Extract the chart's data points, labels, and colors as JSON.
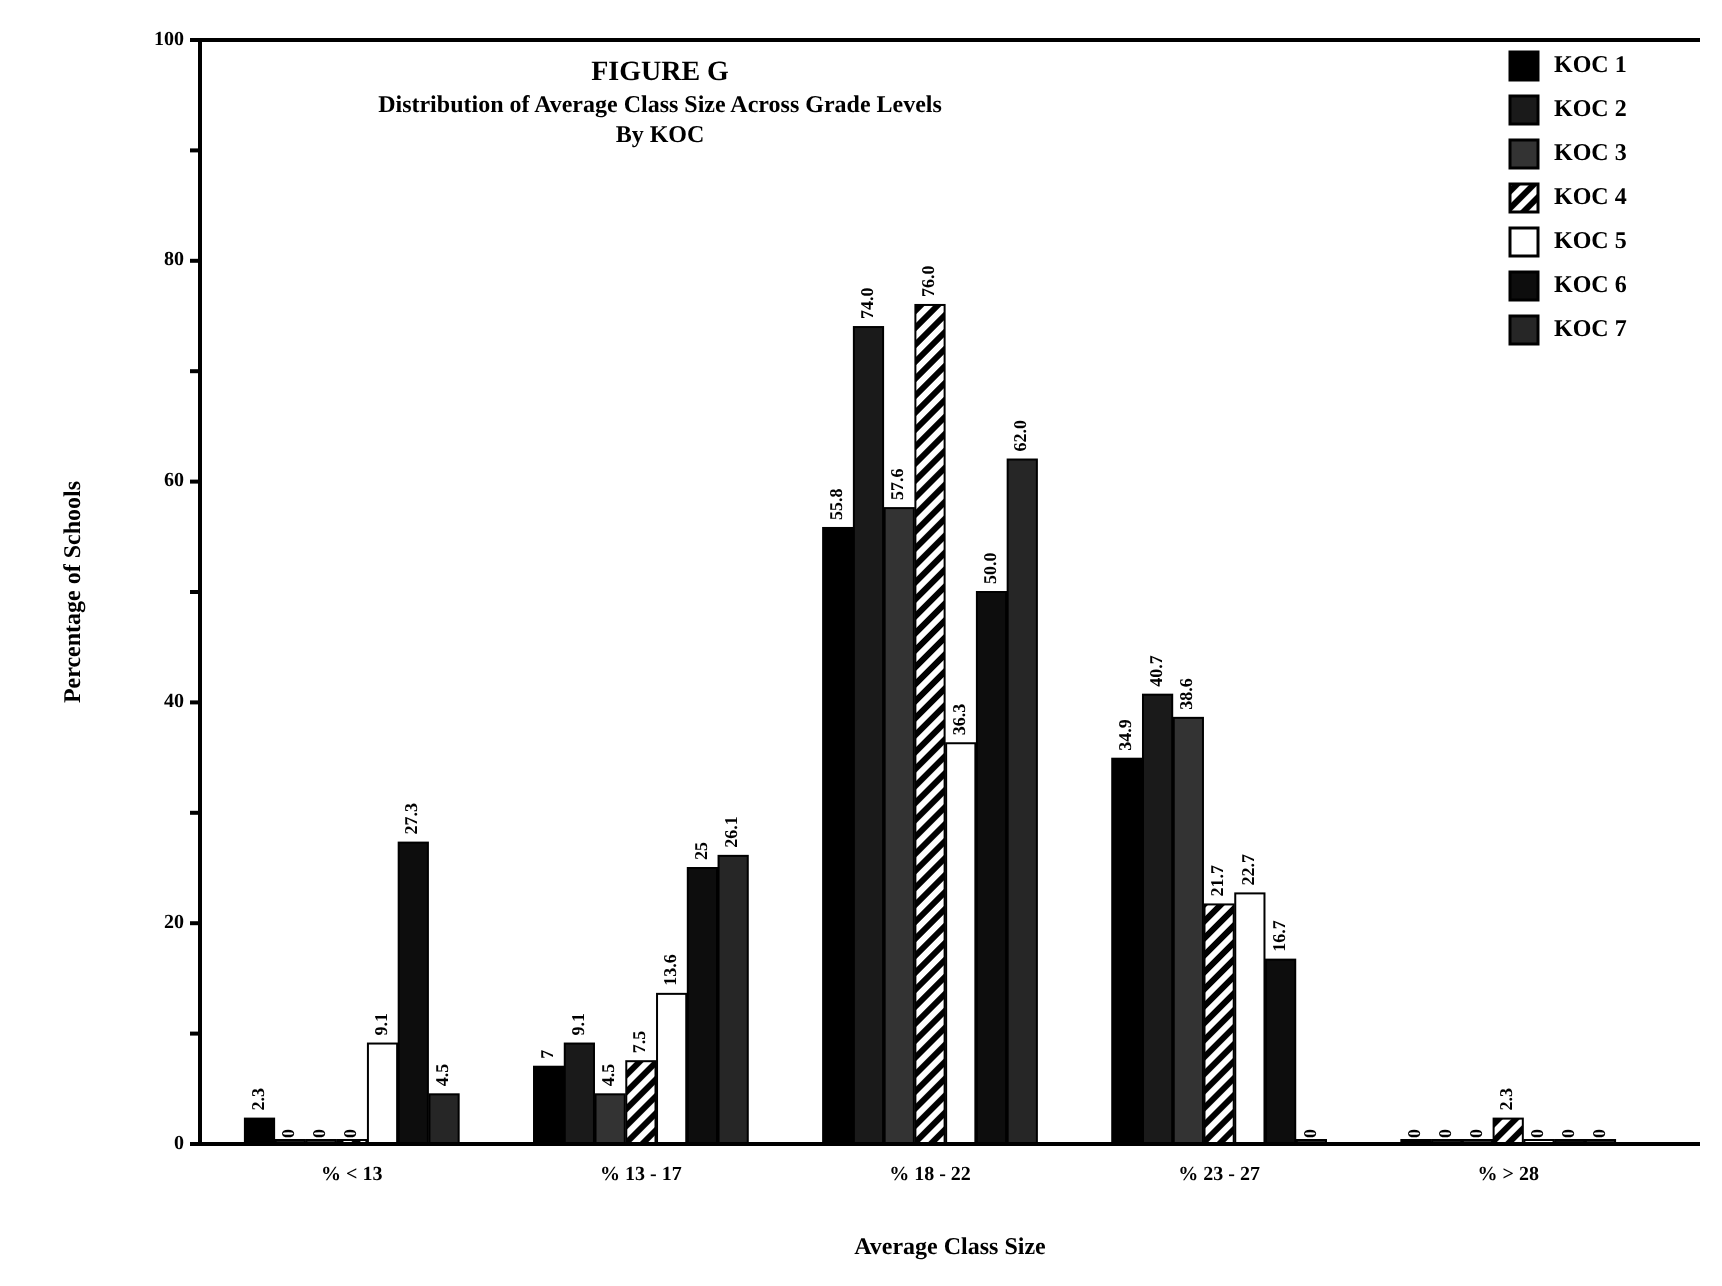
{
  "chart_data": {
    "type": "bar",
    "title": "FIGURE G",
    "subtitle": "Distribution of Average Class Size Across Grade Levels\nBy KOC",
    "xlabel": "Average Class Size",
    "ylabel": "Percentage of Schools",
    "categories": [
      "% < 13",
      "% 13 - 17",
      "% 18 - 22",
      "% 23 - 27",
      "% > 28"
    ],
    "series": [
      {
        "name": "KOC 1",
        "color": "#000000",
        "values": [
          2.3,
          7,
          55.8,
          34.9,
          0
        ],
        "value_labels": [
          "2.3",
          "7",
          "55.8",
          "34.9",
          "0"
        ]
      },
      {
        "name": "KOC 2",
        "color": "#1a1a1a",
        "values": [
          0,
          9.1,
          74.0,
          40.7,
          0
        ],
        "value_labels": [
          "0",
          "9.1",
          "74.0",
          "40.7",
          "0"
        ]
      },
      {
        "name": "KOC 3",
        "color": "#333333",
        "values": [
          0,
          4.5,
          57.6,
          38.6,
          0
        ],
        "value_labels": [
          "0",
          "4.5",
          "57.6",
          "38.6",
          "0"
        ]
      },
      {
        "name": "KOC 4",
        "color": "#000000",
        "values": [
          0,
          7.5,
          76.0,
          21.7,
          2.3
        ],
        "value_labels": [
          "0",
          "7.5",
          "76.0",
          "21.7",
          "2.3"
        ]
      },
      {
        "name": "KOC 5",
        "color": "#ffffff",
        "values": [
          9.1,
          13.6,
          36.3,
          22.7,
          0
        ],
        "value_labels": [
          "9.1",
          "13.6",
          "36.3",
          "22.7",
          "0"
        ]
      },
      {
        "name": "KOC 6",
        "color": "#0d0d0d",
        "values": [
          27.3,
          25,
          50.0,
          16.7,
          0
        ],
        "value_labels": [
          "27.3",
          "25",
          "50.0",
          "16.7",
          "0"
        ]
      },
      {
        "name": "KOC 7",
        "color": "#262626",
        "values": [
          4.5,
          26.1,
          62.0,
          0,
          0
        ],
        "value_labels": [
          "4.5",
          "26.1",
          "62.0",
          "0",
          "0"
        ]
      }
    ],
    "ylim": [
      0,
      100
    ],
    "yticks": [
      0,
      {
        "value": 10,
        "label": null
      },
      20,
      {
        "value": 30,
        "label": null
      },
      40,
      {
        "value": 50,
        "label": null
      },
      60,
      {
        "value": 70,
        "label": null
      },
      80,
      {
        "value": 90,
        "label": null
      },
      100
    ],
    "legend": "top right",
    "grid": false
  }
}
